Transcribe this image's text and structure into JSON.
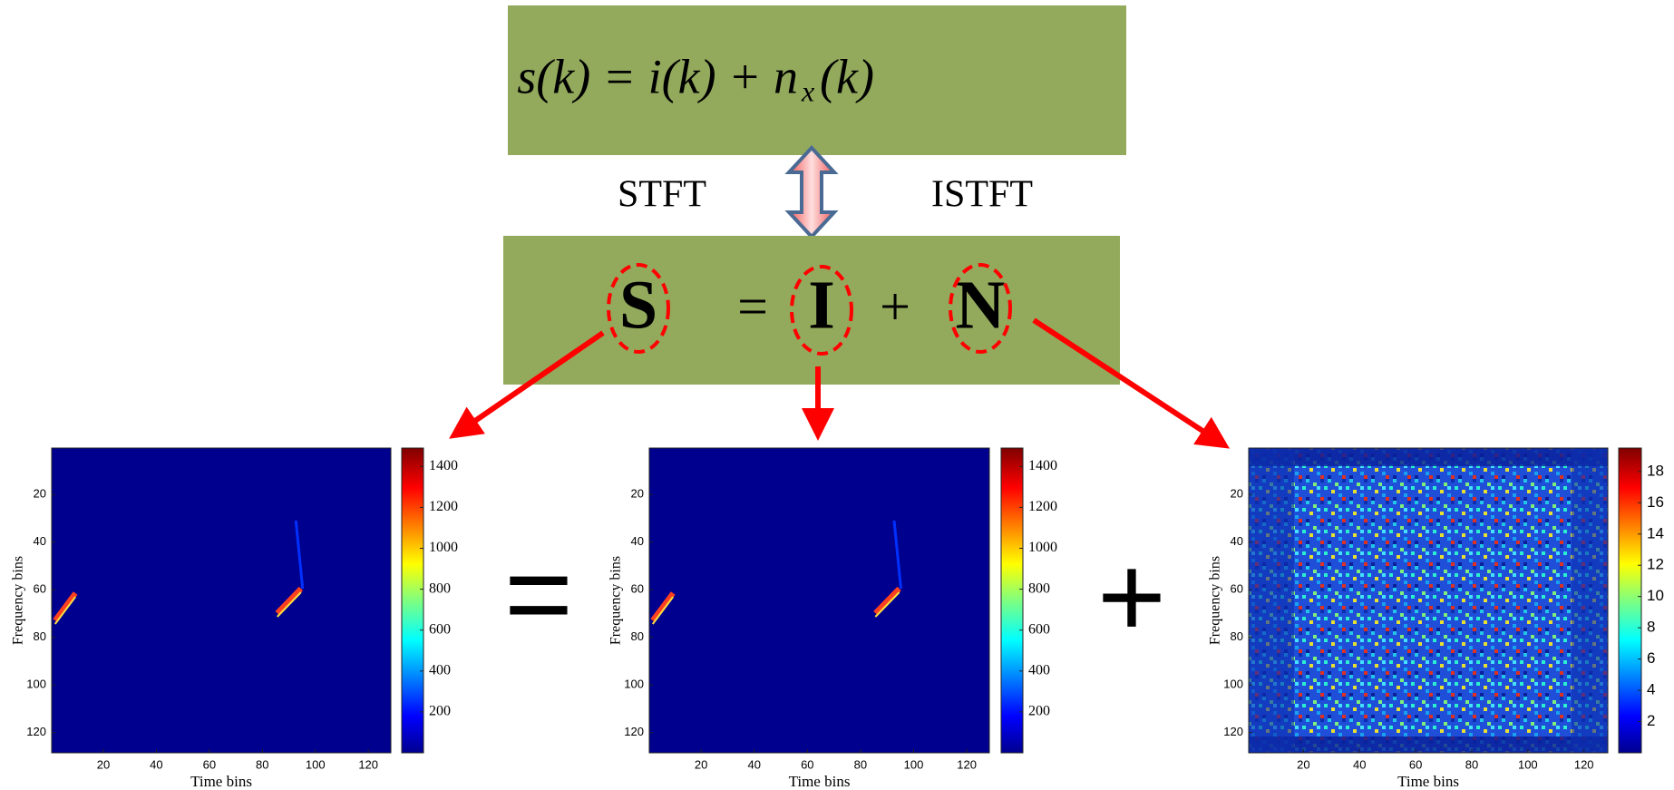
{
  "formula": {
    "main": "s(k) = i(k) + n",
    "subscript": "x",
    "tail": "(k)"
  },
  "transforms": {
    "forward": "STFT",
    "inverse": "ISTFT"
  },
  "matrix_equation": {
    "S": "S",
    "equals": "=",
    "I": "I",
    "plus": "+",
    "N": "N"
  },
  "operators": {
    "equals": "=",
    "plus": "+"
  },
  "panels": [
    {
      "xlabel": "Time bins",
      "ylabel": "Frequency bins",
      "xlim": [
        0.5,
        128.5
      ],
      "ylim": [
        128.5,
        0.5
      ],
      "xticks": [
        20,
        40,
        60,
        80,
        100,
        120
      ],
      "yticks": [
        20,
        40,
        60,
        80,
        100,
        120
      ],
      "colorbar": {
        "lim": [
          0,
          1490
        ],
        "ticks": [
          200,
          400,
          600,
          800,
          1000,
          1200,
          1400
        ]
      }
    },
    {
      "xlabel": "Time bins",
      "ylabel": "Frequency bins",
      "xlim": [
        0.5,
        128.5
      ],
      "ylim": [
        128.5,
        0.5
      ],
      "xticks": [
        20,
        40,
        60,
        80,
        100,
        120
      ],
      "yticks": [
        20,
        40,
        60,
        80,
        100,
        120
      ],
      "colorbar": {
        "lim": [
          0,
          1490
        ],
        "ticks": [
          200,
          400,
          600,
          800,
          1000,
          1200,
          1400
        ]
      }
    },
    {
      "xlabel": "Time bins",
      "ylabel": "Frequency bins",
      "xlim": [
        0.5,
        128.5
      ],
      "ylim": [
        128.5,
        0.5
      ],
      "xticks": [
        20,
        40,
        60,
        80,
        100,
        120
      ],
      "yticks": [
        20,
        40,
        60,
        80,
        100,
        120
      ],
      "colorbar": {
        "lim": [
          0,
          19.5
        ],
        "ticks": [
          2,
          4,
          6,
          8,
          10,
          12,
          14,
          16,
          18
        ]
      }
    }
  ]
}
